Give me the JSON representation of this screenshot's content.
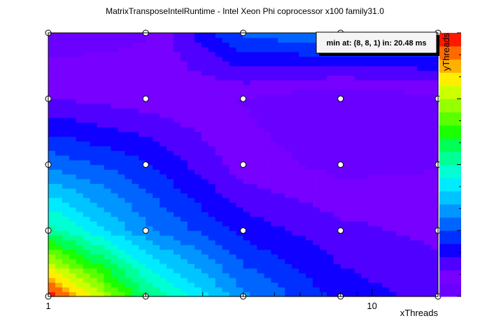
{
  "chart_data": {
    "type": "heatmap",
    "title": "MatrixTransposeIntelRuntime - Intel Xeon Phi coprocessor x100 family31.0",
    "xlabel": "xThreads",
    "ylabel": "yThreads",
    "x_scale": "log",
    "y_scale": "log",
    "x": [
      1,
      2,
      4,
      8,
      16
    ],
    "y": [
      1,
      2,
      4,
      8,
      16
    ],
    "x_tick_labels": [
      "1",
      "10"
    ],
    "z_units": "ms",
    "z": [
      [
        95,
        60,
        42,
        28,
        22
      ],
      [
        62,
        44,
        36,
        26,
        24
      ],
      [
        44,
        34,
        26,
        24,
        40
      ],
      [
        34,
        29,
        23,
        20.48,
        43
      ],
      [
        30,
        27,
        24,
        23,
        42
      ]
    ],
    "colorbar_levels": 20,
    "annotation": {
      "text": "min at: (8, 8, 1) in: 20.48 ms"
    },
    "grid": false
  },
  "colors": {
    "palette": [
      "#6a00ff",
      "#7700ff",
      "#5000ff",
      "#1000ff",
      "#0030ff",
      "#0065ff",
      "#0095ff",
      "#00c4ff",
      "#00ebff",
      "#00ffd2",
      "#00ff96",
      "#00ff55",
      "#1cff00",
      "#5aff00",
      "#96ff00",
      "#ccff00",
      "#ffee00",
      "#ffb000",
      "#ff6a00",
      "#ff1800"
    ]
  }
}
